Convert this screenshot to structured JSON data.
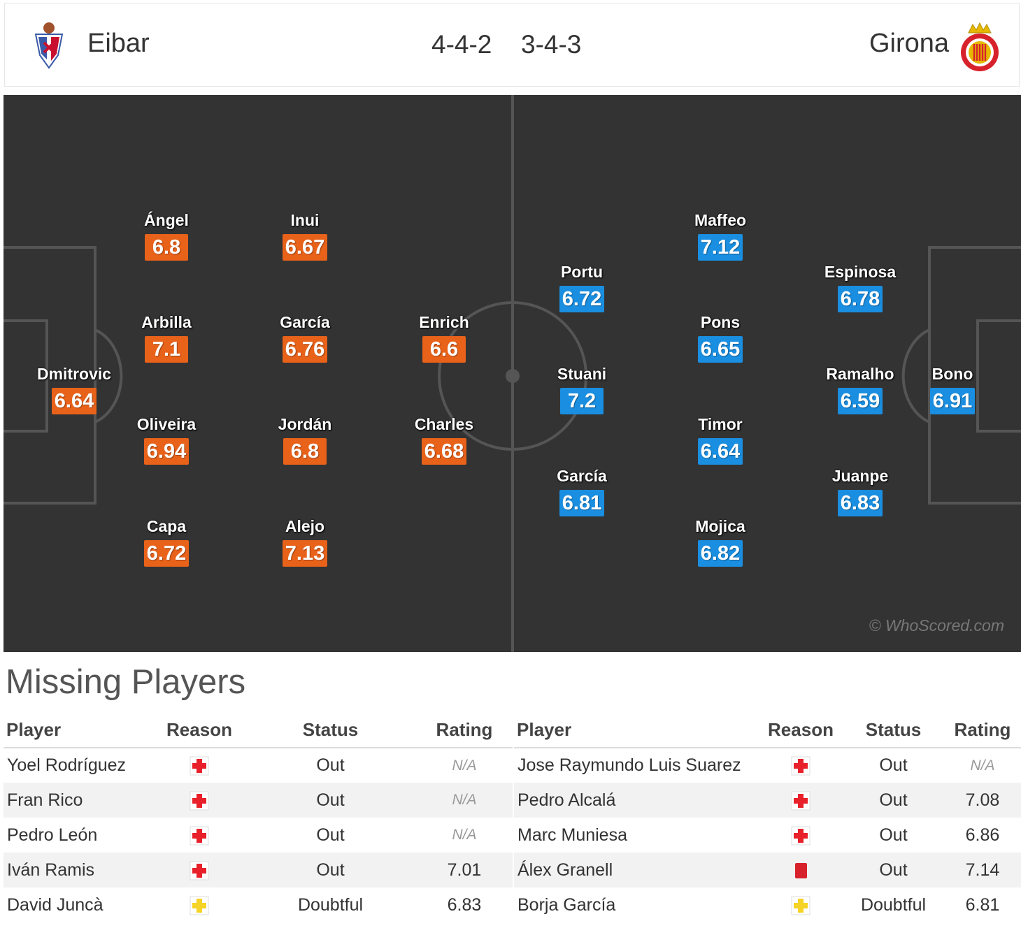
{
  "match": {
    "home_team": "Eibar",
    "away_team": "Girona",
    "home_formation": "4-4-2",
    "away_formation": "3-4-3"
  },
  "colors": {
    "home_rating_bg": "#e8621a",
    "away_rating_bg": "#1a8ee0",
    "pitch_bg": "#333333",
    "injury_red": "#e8202a",
    "doubtful_yellow": "#f5d327",
    "red_card": "#d7222c"
  },
  "home_players": [
    {
      "name": "Dmitrovic",
      "rating": "6.64"
    },
    {
      "name": "Ángel",
      "rating": "6.8"
    },
    {
      "name": "Arbilla",
      "rating": "7.1"
    },
    {
      "name": "Oliveira",
      "rating": "6.94"
    },
    {
      "name": "Capa",
      "rating": "6.72"
    },
    {
      "name": "Inui",
      "rating": "6.67"
    },
    {
      "name": "García",
      "rating": "6.76"
    },
    {
      "name": "Jordán",
      "rating": "6.8"
    },
    {
      "name": "Alejo",
      "rating": "7.13"
    },
    {
      "name": "Enrich",
      "rating": "6.6"
    },
    {
      "name": "Charles",
      "rating": "6.68"
    }
  ],
  "away_players": [
    {
      "name": "Portu",
      "rating": "6.72"
    },
    {
      "name": "Stuani",
      "rating": "7.2"
    },
    {
      "name": "García",
      "rating": "6.81"
    },
    {
      "name": "Maffeo",
      "rating": "7.12"
    },
    {
      "name": "Pons",
      "rating": "6.65"
    },
    {
      "name": "Timor",
      "rating": "6.64"
    },
    {
      "name": "Mojica",
      "rating": "6.82"
    },
    {
      "name": "Espinosa",
      "rating": "6.78"
    },
    {
      "name": "Ramalho",
      "rating": "6.59"
    },
    {
      "name": "Juanpe",
      "rating": "6.83"
    },
    {
      "name": "Bono",
      "rating": "6.91"
    }
  ],
  "watermark": "© WhoScored.com",
  "missing": {
    "title": "Missing Players",
    "headers": {
      "player": "Player",
      "reason": "Reason",
      "status": "Status",
      "rating": "Rating"
    },
    "home": [
      {
        "player": "Yoel Rodríguez",
        "reason": "injury-icon",
        "status": "Out",
        "rating": "N/A"
      },
      {
        "player": "Fran Rico",
        "reason": "injury-icon",
        "status": "Out",
        "rating": "N/A"
      },
      {
        "player": "Pedro León",
        "reason": "injury-icon",
        "status": "Out",
        "rating": "N/A"
      },
      {
        "player": "Iván Ramis",
        "reason": "injury-icon",
        "status": "Out",
        "rating": "7.01"
      },
      {
        "player": "David Juncà",
        "reason": "doubtful-injury-icon",
        "status": "Doubtful",
        "rating": "6.83"
      }
    ],
    "away": [
      {
        "player": "Jose Raymundo Luis Suarez",
        "reason": "injury-icon",
        "status": "Out",
        "rating": "N/A"
      },
      {
        "player": "Pedro Alcalá",
        "reason": "injury-icon",
        "status": "Out",
        "rating": "7.08"
      },
      {
        "player": "Marc Muniesa",
        "reason": "injury-icon",
        "status": "Out",
        "rating": "6.86"
      },
      {
        "player": "Álex Granell",
        "reason": "red-card-icon",
        "status": "Out",
        "rating": "7.14"
      },
      {
        "player": "Borja García",
        "reason": "doubtful-injury-icon",
        "status": "Doubtful",
        "rating": "6.81"
      }
    ]
  }
}
